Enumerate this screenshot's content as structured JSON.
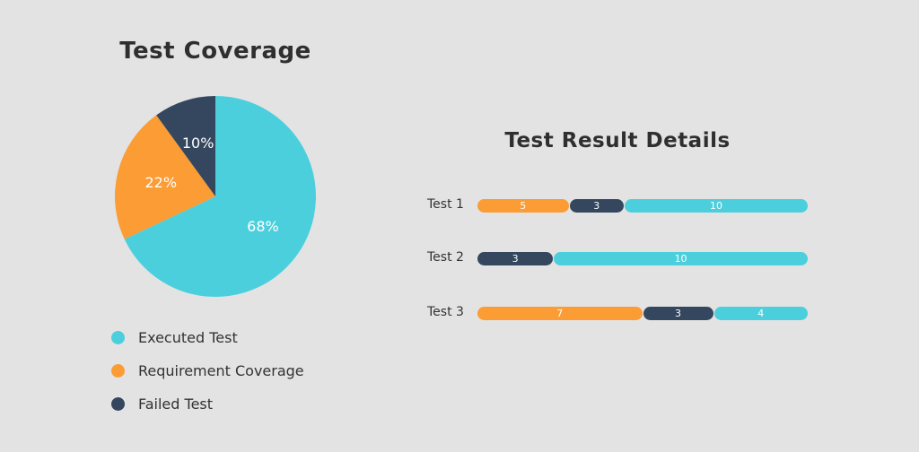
{
  "colors": {
    "executed": "#4ccfdc",
    "requirement": "#fb9c35",
    "failed": "#35475f"
  },
  "chart_data": [
    {
      "type": "pie",
      "title": "Test Coverage",
      "slices": [
        {
          "label": "Executed Test",
          "value": 68,
          "value_label": "68%",
          "color": "#4ccfdc"
        },
        {
          "label": "Requirement Coverage",
          "value": 22,
          "value_label": "22%",
          "color": "#fb9c35"
        },
        {
          "label": "Failed Test",
          "value": 10,
          "value_label": "10%",
          "color": "#35475f"
        }
      ],
      "legend": [
        {
          "label": "Executed Test",
          "color": "#4ccfdc"
        },
        {
          "label": "Requirement Coverage",
          "color": "#fb9c35"
        },
        {
          "label": "Failed Test",
          "color": "#35475f"
        }
      ]
    },
    {
      "type": "bar",
      "orientation": "horizontal",
      "stacked": true,
      "title": "Test Result Details",
      "categories": [
        "Test 1",
        "Test 2",
        "Test 3"
      ],
      "series": [
        {
          "color": "#fb9c35",
          "values": [
            5,
            0,
            7
          ]
        },
        {
          "color": "#35475f",
          "values": [
            3,
            3,
            3
          ]
        },
        {
          "color": "#4ccfdc",
          "values": [
            10,
            10,
            4
          ]
        }
      ]
    }
  ]
}
